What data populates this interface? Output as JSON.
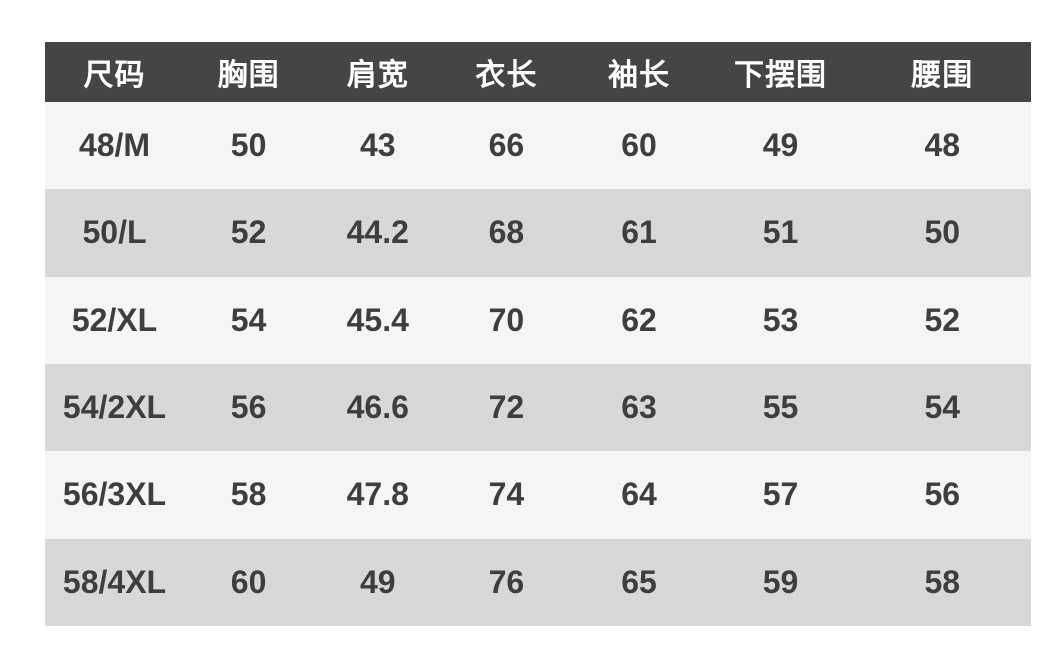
{
  "style": {
    "page_bg": "#ffffff",
    "header_bg": "#454547",
    "header_text": "#ffffff",
    "row_light_bg": "#f5f5f5",
    "row_dark_bg": "#d8d8d8",
    "cell_text": "#3e3e40"
  },
  "chart_data": {
    "type": "table",
    "columns": [
      "尺码",
      "胸围",
      "肩宽",
      "衣长",
      "袖长",
      "下摆围",
      "腰围"
    ],
    "rows": [
      [
        "48/M",
        "50",
        "43",
        "66",
        "60",
        "49",
        "48"
      ],
      [
        "50/L",
        "52",
        "44.2",
        "68",
        "61",
        "51",
        "50"
      ],
      [
        "52/XL",
        "54",
        "45.4",
        "70",
        "62",
        "53",
        "52"
      ],
      [
        "54/2XL",
        "56",
        "46.6",
        "72",
        "63",
        "55",
        "54"
      ],
      [
        "56/3XL",
        "58",
        "47.8",
        "74",
        "64",
        "57",
        "56"
      ],
      [
        "58/4XL",
        "60",
        "49",
        "76",
        "65",
        "59",
        "58"
      ]
    ],
    "layout": {
      "striped": true,
      "first_row_shade": "light",
      "header_style": "dark-inverse"
    }
  }
}
